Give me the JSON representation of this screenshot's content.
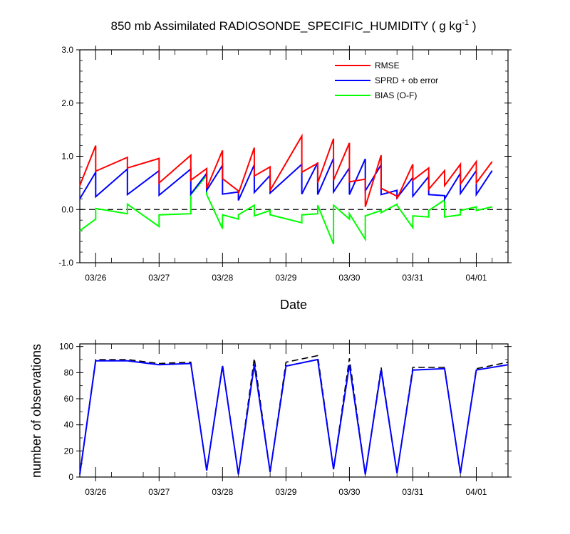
{
  "chart_data": [
    {
      "type": "line",
      "title_main": "850 mb Assimilated RADIOSONDE_SPECIFIC_HUMIDITY ( g kg",
      "title_sup": "-1",
      "title_end": " )",
      "xlabel": "Date",
      "ylabel": "",
      "xlim": [
        0,
        6.75
      ],
      "ylim": [
        -1.0,
        3.0
      ],
      "yticks": [
        -1.0,
        0.0,
        1.0,
        2.0,
        3.0
      ],
      "ytick_labels": [
        "-1.0",
        "0.0",
        "1.0",
        "2.0",
        "3.0"
      ],
      "xticks": [
        0.25,
        1.25,
        2.25,
        3.25,
        4.25,
        5.25,
        6.25
      ],
      "xtick_labels": [
        "03/26",
        "03/27",
        "03/28",
        "03/29",
        "03/30",
        "03/31",
        "04/01"
      ],
      "legend": [
        "RMSE",
        "SPRD + ob error",
        "BIAS (O-F)"
      ],
      "legend_position": "top-right",
      "zero_line": true,
      "series": [
        {
          "name": "RMSE",
          "color": "#ff0000",
          "x": [
            0.0,
            0.25,
            0.25,
            0.75,
            0.75,
            1.25,
            1.25,
            1.75,
            1.75,
            2.0,
            2.0,
            2.25,
            2.25,
            2.5,
            2.5,
            2.75,
            2.75,
            3.0,
            3.0,
            3.5,
            3.5,
            3.75,
            3.75,
            4.0,
            4.0,
            4.25,
            4.25,
            4.5,
            4.5,
            4.75,
            4.75,
            5.0,
            5.0,
            5.25,
            5.25,
            5.5,
            5.5,
            5.75,
            5.75,
            6.0,
            6.0,
            6.25,
            6.25,
            6.5
          ],
          "values": [
            0.45,
            1.2,
            0.72,
            0.98,
            0.78,
            0.96,
            0.5,
            1.02,
            0.55,
            0.77,
            0.4,
            1.11,
            0.58,
            0.35,
            0.3,
            1.16,
            0.63,
            0.8,
            0.36,
            1.38,
            0.7,
            0.87,
            0.5,
            1.33,
            0.55,
            1.25,
            0.52,
            0.57,
            0.05,
            1.02,
            0.4,
            0.25,
            0.2,
            0.85,
            0.55,
            0.78,
            0.38,
            0.73,
            0.45,
            0.85,
            0.48,
            0.9,
            0.5,
            0.9
          ]
        },
        {
          "name": "SPRD + ob error",
          "color": "#0000ff",
          "x": [
            0.0,
            0.25,
            0.25,
            0.75,
            0.75,
            1.25,
            1.25,
            1.75,
            1.75,
            2.0,
            2.0,
            2.25,
            2.25,
            2.5,
            2.5,
            2.75,
            2.75,
            3.0,
            3.0,
            3.5,
            3.5,
            3.75,
            3.75,
            4.0,
            4.0,
            4.25,
            4.25,
            4.5,
            4.5,
            4.75,
            4.75,
            5.0,
            5.0,
            5.25,
            5.25,
            5.5,
            5.5,
            5.75,
            5.75,
            6.0,
            6.0,
            6.25,
            6.25,
            6.5
          ],
          "values": [
            0.2,
            0.7,
            0.24,
            0.76,
            0.28,
            0.73,
            0.27,
            0.76,
            0.29,
            0.68,
            0.36,
            0.83,
            0.29,
            0.33,
            0.17,
            0.84,
            0.32,
            0.64,
            0.31,
            0.85,
            0.29,
            0.88,
            0.28,
            0.96,
            0.33,
            0.78,
            0.28,
            0.95,
            0.35,
            0.84,
            0.28,
            0.36,
            0.22,
            0.6,
            0.25,
            0.62,
            0.28,
            0.26,
            0.2,
            0.68,
            0.3,
            0.73,
            0.28,
            0.73
          ]
        },
        {
          "name": "BIAS (O-F)",
          "color": "#00ff00",
          "x": [
            0.0,
            0.25,
            0.25,
            0.75,
            0.75,
            1.25,
            1.25,
            1.75,
            1.75,
            2.0,
            2.0,
            2.25,
            2.25,
            2.5,
            2.5,
            2.75,
            2.75,
            3.0,
            3.0,
            3.5,
            3.5,
            3.75,
            3.75,
            4.0,
            4.0,
            4.25,
            4.25,
            4.5,
            4.5,
            4.75,
            4.75,
            5.0,
            5.0,
            5.25,
            5.25,
            5.5,
            5.5,
            5.75,
            5.75,
            6.0,
            6.0,
            6.25,
            6.25,
            6.5
          ],
          "values": [
            -0.4,
            -0.18,
            0.02,
            -0.08,
            0.1,
            -0.32,
            -0.1,
            -0.08,
            0.28,
            0.64,
            0.28,
            -0.36,
            -0.1,
            -0.18,
            -0.1,
            0.08,
            -0.12,
            -0.02,
            -0.1,
            -0.25,
            -0.1,
            -0.08,
            0.08,
            -0.65,
            0.08,
            -0.18,
            -0.08,
            -0.56,
            -0.12,
            -0.02,
            -0.06,
            0.1,
            0.08,
            -0.34,
            -0.12,
            -0.14,
            -0.02,
            0.18,
            -0.14,
            -0.1,
            -0.02,
            0.05,
            -0.02,
            0.05
          ]
        }
      ]
    },
    {
      "type": "line",
      "xlabel": "",
      "ylabel": "number of observations",
      "xlim": [
        0,
        6.75
      ],
      "ylim": [
        0,
        102
      ],
      "yticks": [
        0,
        20,
        40,
        60,
        80,
        100
      ],
      "ytick_labels": [
        "0",
        "20",
        "40",
        "60",
        "80",
        "100"
      ],
      "xticks": [
        0.25,
        1.25,
        2.25,
        3.25,
        4.25,
        5.25,
        6.25
      ],
      "xtick_labels": [
        "03/26",
        "03/27",
        "03/28",
        "03/29",
        "03/30",
        "03/31",
        "04/01"
      ],
      "series": [
        {
          "name": "observations (blue)",
          "color": "#0000ff",
          "style": "solid",
          "x": [
            0.0,
            0.25,
            0.75,
            1.25,
            1.75,
            2.0,
            2.25,
            2.5,
            2.75,
            3.0,
            3.25,
            3.75,
            4.0,
            4.25,
            4.5,
            4.75,
            5.0,
            5.25,
            5.75,
            6.0,
            6.25,
            6.75
          ],
          "values": [
            2,
            89,
            89,
            86,
            87,
            5,
            85,
            2,
            86,
            4,
            85,
            90,
            6,
            86,
            2,
            82,
            3,
            82,
            83,
            3,
            82,
            86
          ]
        },
        {
          "name": "observations (dashed)",
          "color": "#000000",
          "style": "dashed",
          "x": [
            0.0,
            0.25,
            0.75,
            1.25,
            1.75,
            2.0,
            2.25,
            2.5,
            2.75,
            3.0,
            3.25,
            3.75,
            4.0,
            4.25,
            4.5,
            4.75,
            5.0,
            5.25,
            5.75,
            6.0,
            6.25,
            6.75
          ],
          "values": [
            2,
            90,
            90,
            87,
            88,
            5,
            86,
            2,
            91,
            4,
            88,
            93,
            6,
            91,
            2,
            84,
            3,
            84,
            84,
            3,
            83,
            88
          ]
        }
      ]
    }
  ]
}
